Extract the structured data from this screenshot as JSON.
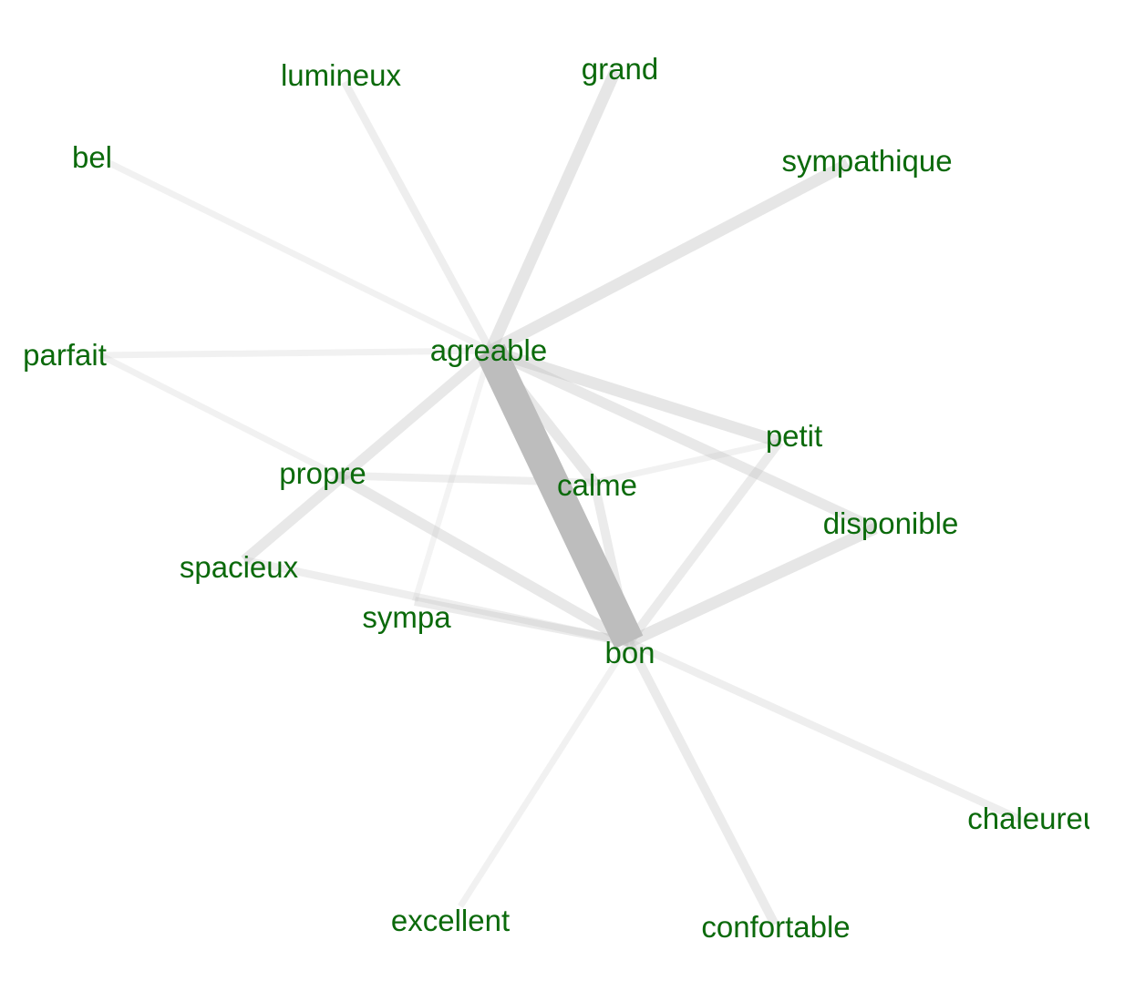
{
  "graph": {
    "label_color": "#0b6a0b",
    "edge_color": "#bdbdbd",
    "nodes": [
      {
        "id": "agreable",
        "label": "agreable"
      },
      {
        "id": "bon",
        "label": "bon"
      },
      {
        "id": "calme",
        "label": "calme"
      },
      {
        "id": "petit",
        "label": "petit"
      },
      {
        "id": "disponible",
        "label": "disponible"
      },
      {
        "id": "propre",
        "label": "propre"
      },
      {
        "id": "spacieux",
        "label": "spacieux"
      },
      {
        "id": "sympa",
        "label": "sympa"
      },
      {
        "id": "lumineux",
        "label": "lumineux"
      },
      {
        "id": "grand",
        "label": "grand"
      },
      {
        "id": "sympathique",
        "label": "sympathique"
      },
      {
        "id": "bel",
        "label": "bel"
      },
      {
        "id": "parfait",
        "label": "parfait"
      },
      {
        "id": "chaleureux",
        "label": "chaleureux"
      },
      {
        "id": "excellent",
        "label": "excellent"
      },
      {
        "id": "confortable",
        "label": "confortable"
      }
    ],
    "edges": [
      {
        "source": "agreable",
        "target": "bon",
        "weight": 10
      },
      {
        "source": "agreable",
        "target": "grand",
        "weight": 3
      },
      {
        "source": "agreable",
        "target": "sympathique",
        "weight": 3
      },
      {
        "source": "agreable",
        "target": "petit",
        "weight": 3
      },
      {
        "source": "agreable",
        "target": "disponible",
        "weight": 2.5
      },
      {
        "source": "agreable",
        "target": "calme",
        "weight": 2.5
      },
      {
        "source": "agreable",
        "target": "spacieux",
        "weight": 2.5
      },
      {
        "source": "agreable",
        "target": "lumineux",
        "weight": 1.5
      },
      {
        "source": "agreable",
        "target": "bel",
        "weight": 1
      },
      {
        "source": "agreable",
        "target": "parfait",
        "weight": 1
      },
      {
        "source": "agreable",
        "target": "sympa",
        "weight": 0.8
      },
      {
        "source": "bon",
        "target": "disponible",
        "weight": 3
      },
      {
        "source": "bon",
        "target": "petit",
        "weight": 2
      },
      {
        "source": "bon",
        "target": "calme",
        "weight": 2
      },
      {
        "source": "bon",
        "target": "propre",
        "weight": 2.5
      },
      {
        "source": "bon",
        "target": "sympa",
        "weight": 2
      },
      {
        "source": "bon",
        "target": "spacieux",
        "weight": 1.5
      },
      {
        "source": "bon",
        "target": "chaleureux",
        "weight": 1.5
      },
      {
        "source": "bon",
        "target": "confortable",
        "weight": 2
      },
      {
        "source": "bon",
        "target": "excellent",
        "weight": 1
      },
      {
        "source": "propre",
        "target": "calme",
        "weight": 1.5
      },
      {
        "source": "propre",
        "target": "parfait",
        "weight": 1
      },
      {
        "source": "calme",
        "target": "petit",
        "weight": 1
      }
    ]
  }
}
